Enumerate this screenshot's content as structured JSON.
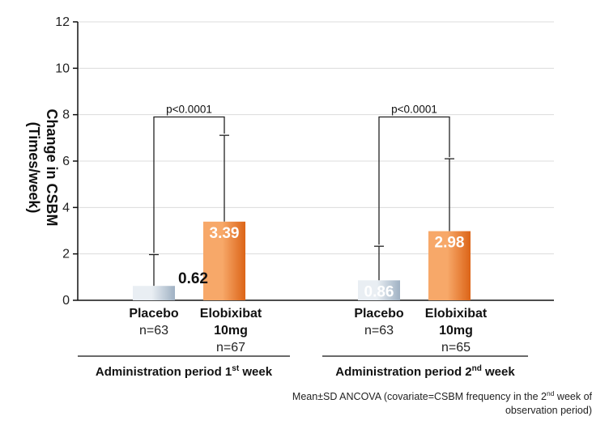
{
  "chart_data": {
    "type": "bar",
    "ylabel_line1": "Change in CSBM",
    "ylabel_line2": "(Times/week)",
    "ylim": [
      0,
      12
    ],
    "yticks": [
      0,
      2,
      4,
      6,
      8,
      10,
      12
    ],
    "grid": true,
    "groups": [
      {
        "period_label": "Administration period 1",
        "period_sup": "st",
        "period_suffix": " week",
        "pvalue": "p<0.0001",
        "bars": [
          {
            "series": "placebo",
            "name_line1": "Placebo",
            "name_line2": "",
            "n_label": "n=63",
            "value": 0.62,
            "value_label": "0.62",
            "sd": 1.35
          },
          {
            "series": "elobixibat",
            "name_line1": "Elobixibat",
            "name_line2": "10mg",
            "n_label": "n=67",
            "value": 3.39,
            "value_label": "3.39",
            "sd": 3.72
          }
        ]
      },
      {
        "period_label": "Administration period 2",
        "period_sup": "nd",
        "period_suffix": " week",
        "pvalue": "p<0.0001",
        "bars": [
          {
            "series": "placebo",
            "name_line1": "Placebo",
            "name_line2": "",
            "n_label": "n=63",
            "value": 0.86,
            "value_label": "0.86",
            "sd": 1.47
          },
          {
            "series": "elobixibat",
            "name_line1": "Elobixibat",
            "name_line2": "10mg",
            "n_label": "n=65",
            "value": 2.98,
            "value_label": "2.98",
            "sd": 3.12
          }
        ]
      }
    ],
    "colors": {
      "placebo_light": "#e9eef3",
      "placebo_dark": "#9fb1c3",
      "elobixibat_light": "#f7a869",
      "elobixibat_dark": "#dc6417",
      "grid": "#dcdcdc",
      "axis": "#111111"
    }
  },
  "footnote": {
    "line1_a": "Mean±SD ANCOVA (covariate=CSBM frequency in the 2",
    "line1_sup": "nd",
    "line1_b": " week of",
    "line2": "observation period)"
  }
}
